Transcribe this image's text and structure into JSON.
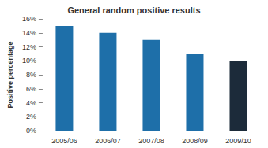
{
  "chart_data": {
    "type": "bar",
    "title": "General random positive results",
    "y_label": "Positive percentage",
    "categories": [
      "2005/06",
      "2006/07",
      "2007/08",
      "2008/09",
      "2009/10"
    ],
    "values": [
      15,
      14,
      13,
      11,
      10
    ],
    "colors": [
      "#1e6fa9",
      "#1e6fa9",
      "#1e6fa9",
      "#1e6fa9",
      "#1c2b3a"
    ],
    "ylim": [
      0,
      16
    ],
    "yticks": [
      {
        "value": 0,
        "label": "0%"
      },
      {
        "value": 2,
        "label": "2%"
      },
      {
        "value": 4,
        "label": "4%"
      },
      {
        "value": 6,
        "label": "6%"
      },
      {
        "value": 8,
        "label": "8%"
      },
      {
        "value": 10,
        "label": "10%"
      },
      {
        "value": 12,
        "label": "12%"
      },
      {
        "value": 14,
        "label": "14%"
      },
      {
        "value": 16,
        "label": "16%"
      }
    ],
    "grid": false
  }
}
